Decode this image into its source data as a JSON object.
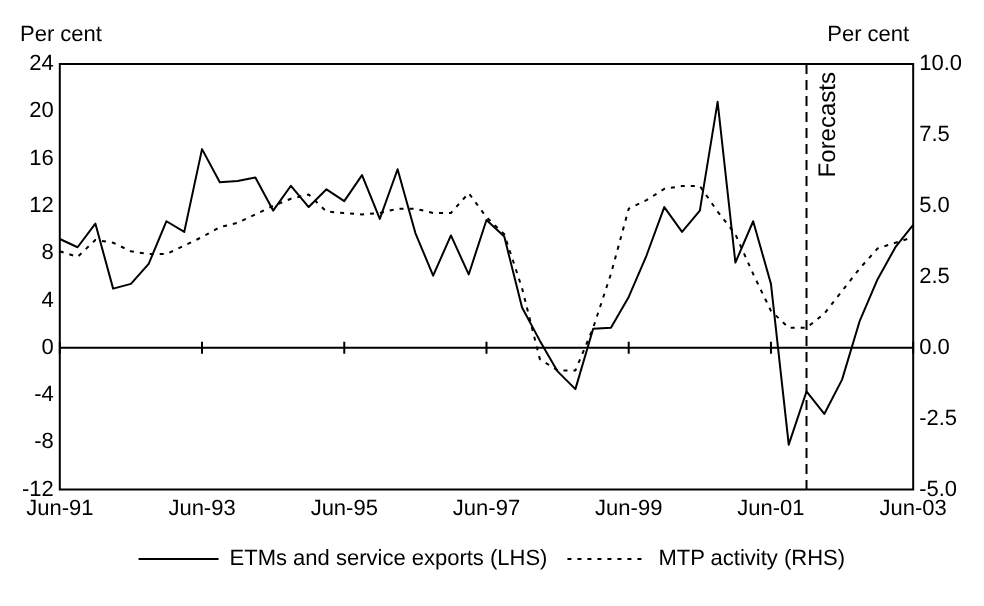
{
  "chart_data": {
    "type": "line",
    "x": [
      "1991-06",
      "1991-09",
      "1991-12",
      "1992-03",
      "1992-06",
      "1992-09",
      "1992-12",
      "1993-03",
      "1993-06",
      "1993-09",
      "1993-12",
      "1994-03",
      "1994-06",
      "1994-09",
      "1994-12",
      "1995-03",
      "1995-06",
      "1995-09",
      "1995-12",
      "1996-03",
      "1996-06",
      "1996-09",
      "1996-12",
      "1997-03",
      "1997-06",
      "1997-09",
      "1997-12",
      "1998-03",
      "1998-06",
      "1998-09",
      "1998-12",
      "1999-03",
      "1999-06",
      "1999-09",
      "1999-12",
      "2000-03",
      "2000-06",
      "2000-09",
      "2000-12",
      "2001-03",
      "2001-06",
      "2001-09",
      "2001-12",
      "2002-03",
      "2002-06",
      "2002-09",
      "2002-12",
      "2003-03",
      "2003-06"
    ],
    "series": [
      {
        "name": "ETMs and service exports (LHS)",
        "color": "#000000",
        "line_style": "solid",
        "axis": "y",
        "values": [
          9.2,
          8.5,
          10.5,
          5.0,
          5.4,
          7.1,
          10.7,
          9.8,
          16.8,
          14.0,
          14.1,
          14.4,
          11.6,
          13.7,
          11.9,
          13.4,
          12.4,
          14.6,
          10.9,
          15.1,
          9.7,
          6.1,
          9.5,
          6.2,
          10.8,
          9.4,
          3.4,
          0.6,
          -2.0,
          -3.5,
          1.6,
          1.7,
          4.3,
          7.8,
          11.9,
          9.8,
          11.6,
          20.8,
          7.2,
          10.7,
          5.4,
          -8.2,
          -3.7,
          -5.6,
          -2.7,
          2.3,
          5.8,
          8.5,
          10.4
        ]
      },
      {
        "name": "MTP activity (RHS)",
        "color": "#000000",
        "line_style": "dotted",
        "axis": "y2",
        "values": [
          3.4,
          3.2,
          3.8,
          3.7,
          3.4,
          3.3,
          3.3,
          3.6,
          3.9,
          4.25,
          4.4,
          4.7,
          5.0,
          5.25,
          5.4,
          4.8,
          4.75,
          4.7,
          4.75,
          4.9,
          4.9,
          4.75,
          4.75,
          5.45,
          4.6,
          4.0,
          2.1,
          -0.4,
          -0.8,
          -0.8,
          0.7,
          2.6,
          4.9,
          5.2,
          5.6,
          5.7,
          5.7,
          4.8,
          4.0,
          2.6,
          1.3,
          0.7,
          0.7,
          1.2,
          2.0,
          2.8,
          3.5,
          3.7,
          3.9
        ]
      }
    ],
    "xlim": [
      "1991-06",
      "2003-06"
    ],
    "xticks": [
      {
        "value": "1991-06",
        "label": "Jun-91"
      },
      {
        "value": "1993-06",
        "label": "Jun-93"
      },
      {
        "value": "1995-06",
        "label": "Jun-95"
      },
      {
        "value": "1997-06",
        "label": "Jun-97"
      },
      {
        "value": "1999-06",
        "label": "Jun-99"
      },
      {
        "value": "2001-06",
        "label": "Jun-01"
      },
      {
        "value": "2003-06",
        "label": "Jun-03"
      }
    ],
    "ylim": [
      -12,
      24
    ],
    "yticks": [
      -12,
      -8,
      -4,
      0,
      4,
      8,
      12,
      16,
      20,
      24
    ],
    "y2lim": [
      -5,
      10
    ],
    "y2ticks": [
      {
        "value": -5,
        "label": "-5.0"
      },
      {
        "value": -2.5,
        "label": "-2.5"
      },
      {
        "value": 0,
        "label": "0.0"
      },
      {
        "value": 2.5,
        "label": "2.5"
      },
      {
        "value": 5,
        "label": "5.0"
      },
      {
        "value": 7.5,
        "label": "7.5"
      },
      {
        "value": 10,
        "label": "10.0"
      }
    ],
    "ylabel": "Per cent",
    "y2label": "Per cent",
    "ref_lines": [
      {
        "axis": "y",
        "value": 0,
        "line_style": "solid"
      },
      {
        "axis": "x",
        "value": "2001-12",
        "label": "Forecasts",
        "line_style": "dashed"
      }
    ],
    "legend": "bottom",
    "grid": false,
    "marker": "none"
  }
}
